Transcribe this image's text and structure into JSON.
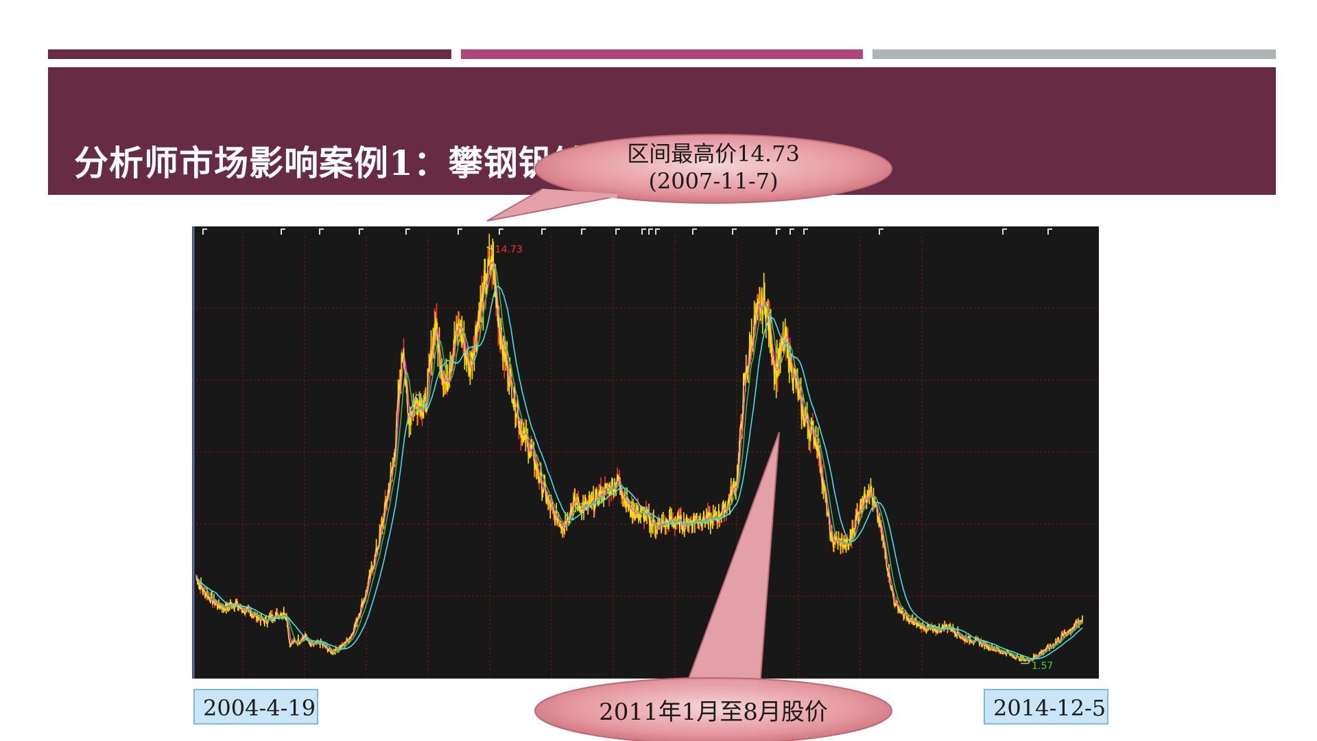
{
  "slide": {
    "title": "分析师市场影响案例1：攀钢钒钛"
  },
  "chart_data": {
    "type": "line",
    "x_range": [
      "2004-4-19",
      "2014-12-5"
    ],
    "ylim": [
      1.57,
      14.73
    ],
    "grid": true,
    "series_colors": {
      "price": "#ffe100",
      "candle_up": "#ff3030",
      "ma_short": "#ff44ff",
      "ma_mid": "#22dd33",
      "ma_long": "#44e0f0"
    },
    "price_points": [
      [
        "2004-04-19",
        4.3
      ],
      [
        "2004-05-15",
        3.9
      ],
      [
        "2004-07-01",
        3.5
      ],
      [
        "2004-08-20",
        3.3
      ],
      [
        "2004-10-01",
        3.45
      ],
      [
        "2004-11-15",
        3.2
      ],
      [
        "2005-01-01",
        3.05
      ],
      [
        "2005-02-15",
        2.85
      ],
      [
        "2005-03-20",
        3.0
      ],
      [
        "2005-05-01",
        3.1
      ],
      [
        "2005-05-20",
        3.05
      ],
      [
        "2005-06-03",
        2.1
      ],
      [
        "2005-07-01",
        2.2
      ],
      [
        "2005-08-15",
        2.35
      ],
      [
        "2005-09-01",
        2.05
      ],
      [
        "2005-10-15",
        2.15
      ],
      [
        "2005-12-01",
        1.85
      ],
      [
        "2006-01-15",
        2.0
      ],
      [
        "2006-03-01",
        2.4
      ],
      [
        "2006-05-01",
        3.7
      ],
      [
        "2006-07-01",
        5.5
      ],
      [
        "2006-09-01",
        8.0
      ],
      [
        "2006-10-15",
        12.0
      ],
      [
        "2006-11-01",
        9.5
      ],
      [
        "2006-12-15",
        10.0
      ],
      [
        "2007-01-20",
        9.8
      ],
      [
        "2007-03-01",
        12.5
      ],
      [
        "2007-04-15",
        10.5
      ],
      [
        "2007-06-15",
        12.5
      ],
      [
        "2007-08-01",
        11.0
      ],
      [
        "2007-09-01",
        12.5
      ],
      [
        "2007-11-07",
        14.73
      ],
      [
        "2007-12-15",
        12.0
      ],
      [
        "2008-02-01",
        10.5
      ],
      [
        "2008-03-15",
        9.0
      ],
      [
        "2008-05-01",
        8.3
      ],
      [
        "2008-06-15",
        7.2
      ],
      [
        "2008-08-01",
        6.3
      ],
      [
        "2008-09-15",
        6.0
      ],
      [
        "2008-11-01",
        6.7
      ],
      [
        "2009-01-01",
        6.5
      ],
      [
        "2009-03-01",
        7.0
      ],
      [
        "2009-05-15",
        7.4
      ],
      [
        "2009-07-01",
        6.5
      ],
      [
        "2009-09-01",
        6.3
      ],
      [
        "2009-11-01",
        5.9
      ],
      [
        "2010-01-01",
        6.1
      ],
      [
        "2010-03-01",
        6.0
      ],
      [
        "2010-05-01",
        6.2
      ],
      [
        "2010-07-01",
        6.1
      ],
      [
        "2010-09-01",
        6.6
      ],
      [
        "2010-10-15",
        7.5
      ],
      [
        "2010-11-15",
        10.5
      ],
      [
        "2011-01-01",
        12.5
      ],
      [
        "2011-02-15",
        13.3
      ],
      [
        "2011-04-01",
        11.0
      ],
      [
        "2011-05-15",
        12.0
      ],
      [
        "2011-08-01",
        9.5
      ],
      [
        "2011-10-01",
        8.7
      ],
      [
        "2011-12-01",
        5.5
      ],
      [
        "2012-02-15",
        5.3
      ],
      [
        "2012-04-01",
        6.5
      ],
      [
        "2012-05-15",
        7.2
      ],
      [
        "2012-07-01",
        6.0
      ],
      [
        "2012-09-01",
        3.5
      ],
      [
        "2012-11-01",
        2.9
      ],
      [
        "2013-01-01",
        2.7
      ],
      [
        "2013-03-01",
        2.55
      ],
      [
        "2013-05-01",
        2.7
      ],
      [
        "2013-07-01",
        2.3
      ],
      [
        "2013-09-01",
        2.2
      ],
      [
        "2013-11-01",
        2.0
      ],
      [
        "2014-01-15",
        1.8
      ],
      [
        "2014-03-01",
        1.65
      ],
      [
        "2014-04-15",
        1.57
      ],
      [
        "2014-06-01",
        1.8
      ],
      [
        "2014-08-01",
        2.1
      ],
      [
        "2014-10-01",
        2.5
      ],
      [
        "2014-12-05",
        2.9
      ]
    ],
    "annotations": {
      "max_label": "14.73",
      "min_label": "1.57"
    }
  },
  "callouts": {
    "peak": {
      "line1": "区间最高价14.73",
      "line2": "(2007-11-7)"
    },
    "period": "2011年1月至8月股价",
    "start_date": "2004-4-19",
    "end_date": "2014-12-5"
  }
}
